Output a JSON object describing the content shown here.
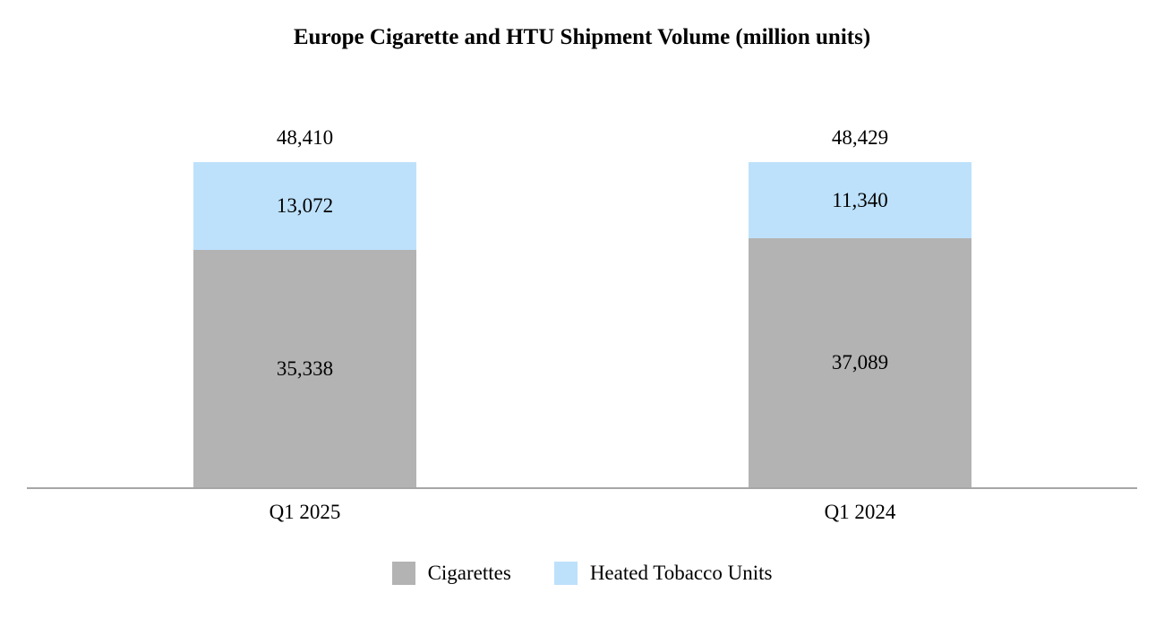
{
  "chart_data": {
    "type": "bar",
    "stacked": true,
    "title": "Europe Cigarette and HTU Shipment Volume (million units)",
    "categories": [
      "Q1 2025",
      "Q1 2024"
    ],
    "series": [
      {
        "name": "Cigarettes",
        "color": "#B3B3B3",
        "values": [
          35338,
          37089
        ],
        "value_labels": [
          "35,338",
          "37,089"
        ]
      },
      {
        "name": "Heated Tobacco Units",
        "color": "#BDE1FB",
        "values": [
          13072,
          11340
        ],
        "value_labels": [
          "13,072",
          "11,340"
        ]
      }
    ],
    "totals": [
      48410,
      48429
    ],
    "total_labels": [
      "48,410",
      "48,429"
    ],
    "legend_position": "bottom",
    "grid": false,
    "axis_line_color": "#A6A6A6",
    "text_color": "#000000",
    "background_color": "#FFFFFF"
  }
}
